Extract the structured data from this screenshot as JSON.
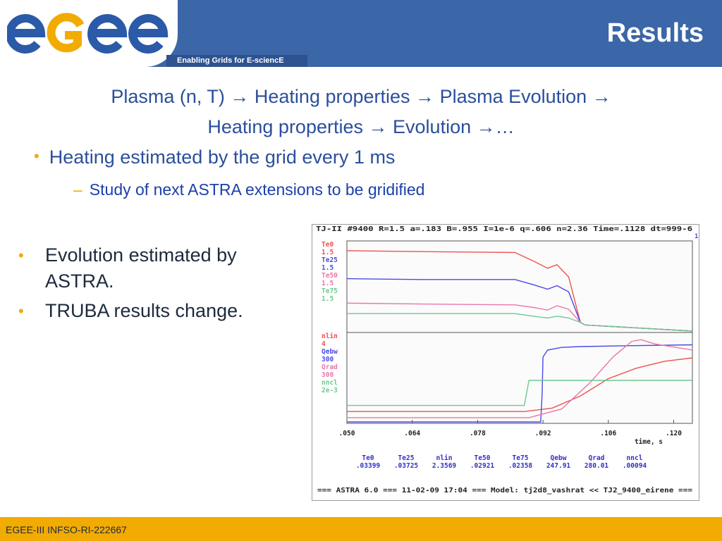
{
  "header": {
    "logo_text": "egee",
    "tagline": "Enabling Grids for E-sciencE",
    "title": "Results"
  },
  "flow": {
    "plasma": "Plasma (n, T)",
    "heating1": "Heating properties",
    "evolution1": "Plasma Evolution",
    "heating2": "Heating properties",
    "evolution2": "Evolution",
    "ellipsis": "…",
    "arrow": "→"
  },
  "bullets": {
    "main": "Heating estimated by the grid every 1 ms",
    "sub": "Study of next ASTRA extensions to be gridified",
    "left": [
      "Evolution estimated by ASTRA.",
      "TRUBA results change."
    ]
  },
  "footer": {
    "text": "EGEE-III INFSO-RI-222667"
  },
  "chart_data": {
    "type": "line",
    "header_line": "TJ-II #9400      R=1.5  a=.183 B=.955 I=1e-6 q=.606 n=2.36 Time=.1128 dt=999-6",
    "header_suffix": "1",
    "xlim": [
      0.05,
      0.124
    ],
    "x_ticks": [
      ".050",
      ".064",
      ".078",
      ".092",
      ".106",
      ".120"
    ],
    "xlabel": "time, s",
    "colors": {
      "red": "#f05050",
      "blue": "#4a4ae8",
      "pink": "#e878a8",
      "green": "#70c890"
    },
    "top_panel": {
      "legend": [
        {
          "name": "Te0",
          "scale": "1.5",
          "color": "red"
        },
        {
          "name": "Te25",
          "scale": "1.5",
          "color": "blue"
        },
        {
          "name": "Te50",
          "scale": "1.5",
          "color": "pink"
        },
        {
          "name": "Te75",
          "scale": "1.5",
          "color": "green"
        }
      ],
      "series": [
        {
          "name": "Te0",
          "color": "red",
          "x": [
            0.05,
            0.066,
            0.086,
            0.09,
            0.093,
            0.095,
            0.0975,
            0.1,
            0.101,
            0.124
          ],
          "y": [
            0.92,
            0.91,
            0.9,
            0.8,
            0.72,
            0.76,
            0.62,
            0.1,
            0.07,
            0.0
          ]
        },
        {
          "name": "Te25",
          "color": "blue",
          "x": [
            0.05,
            0.066,
            0.086,
            0.09,
            0.093,
            0.095,
            0.0975,
            0.1,
            0.101,
            0.124
          ],
          "y": [
            0.6,
            0.59,
            0.59,
            0.53,
            0.48,
            0.52,
            0.45,
            0.1,
            0.07,
            0.0
          ]
        },
        {
          "name": "Te50",
          "color": "pink",
          "x": [
            0.05,
            0.066,
            0.086,
            0.09,
            0.093,
            0.095,
            0.0975,
            0.1,
            0.101,
            0.124
          ],
          "y": [
            0.32,
            0.31,
            0.3,
            0.27,
            0.24,
            0.29,
            0.25,
            0.1,
            0.07,
            0.0
          ]
        },
        {
          "name": "Te75",
          "color": "green",
          "x": [
            0.05,
            0.066,
            0.086,
            0.09,
            0.093,
            0.095,
            0.0975,
            0.1,
            0.101,
            0.124
          ],
          "y": [
            0.2,
            0.2,
            0.2,
            0.17,
            0.15,
            0.17,
            0.15,
            0.1,
            0.07,
            0.0
          ]
        }
      ]
    },
    "bottom_panel": {
      "legend": [
        {
          "name": "nlin",
          "scale": "4",
          "color": "red"
        },
        {
          "name": "Qebw",
          "scale": "300",
          "color": "blue"
        },
        {
          "name": "Qrad",
          "scale": "300",
          "color": "pink"
        },
        {
          "name": "nncl",
          "scale": "2e-3",
          "color": "green"
        }
      ],
      "series": [
        {
          "name": "nlin",
          "color": "red",
          "x": [
            0.05,
            0.088,
            0.094,
            0.1,
            0.106,
            0.112,
            0.118,
            0.124
          ],
          "y": [
            0.12,
            0.12,
            0.16,
            0.3,
            0.5,
            0.62,
            0.7,
            0.74
          ]
        },
        {
          "name": "Qebw",
          "color": "blue",
          "x": [
            0.05,
            0.0915,
            0.0918,
            0.092,
            0.093,
            0.096,
            0.1,
            0.11,
            0.124
          ],
          "y": [
            0.0,
            0.0,
            0.3,
            0.75,
            0.83,
            0.86,
            0.87,
            0.88,
            0.89
          ]
        },
        {
          "name": "Qrad",
          "color": "pink",
          "x": [
            0.05,
            0.089,
            0.096,
            0.102,
            0.107,
            0.111,
            0.113,
            0.116,
            0.124
          ],
          "y": [
            0.05,
            0.05,
            0.15,
            0.45,
            0.75,
            0.93,
            0.95,
            0.9,
            0.83
          ]
        },
        {
          "name": "nncl",
          "color": "green",
          "x": [
            0.05,
            0.088,
            0.089,
            0.124
          ],
          "y": [
            0.19,
            0.19,
            0.48,
            0.48
          ]
        }
      ]
    },
    "readout": {
      "names": [
        "Te0",
        "Te25",
        "nlin",
        "Te50",
        "Te75",
        "Qebw",
        "Qrad",
        "nncl"
      ],
      "values": [
        ".03399",
        ".03725",
        "2.3569",
        ".02921",
        ".02358",
        "247.91",
        "280.01",
        ".00094"
      ]
    },
    "footer_line": "=== ASTRA 6.0 === 11-02-09 17:04 === Model: tj2d8_vashrat << TJ2_9400_eirene ==="
  }
}
